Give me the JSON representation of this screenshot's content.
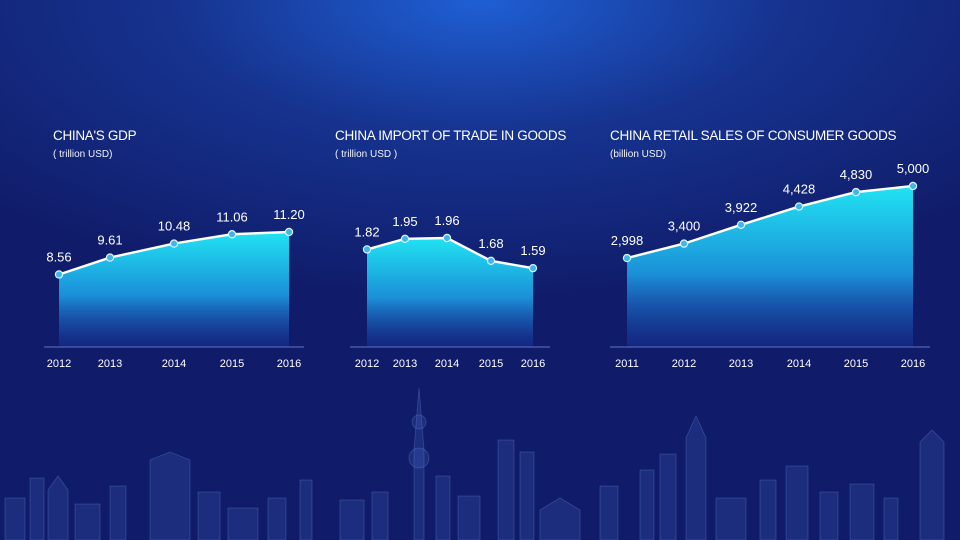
{
  "chart_data": [
    {
      "type": "area",
      "title": "CHINA'S GDP",
      "unit": "( trillion USD)",
      "categories": [
        "2012",
        "2013",
        "2014",
        "2015",
        "2016"
      ],
      "values": [
        8.56,
        9.61,
        10.48,
        11.06,
        11.2
      ],
      "value_labels": [
        "8.56",
        "9.61",
        "10.48",
        "11.06",
        "11.20"
      ],
      "ylim": [
        0,
        11.2
      ],
      "grid": false
    },
    {
      "type": "area",
      "title": "CHINA IMPORT OF TRADE IN GOODS",
      "unit": "( trillion USD )",
      "categories": [
        "2012",
        "2013",
        "2014",
        "2015",
        "2016"
      ],
      "values": [
        1.82,
        1.95,
        1.96,
        1.68,
        1.59
      ],
      "value_labels": [
        "1.82",
        "1.95",
        "1.96",
        "1.68",
        "1.59"
      ],
      "grid": false
    },
    {
      "type": "area",
      "title": "CHINA RETAIL SALES OF CONSUMER GOODS",
      "unit": "(billion USD)",
      "categories": [
        "2011",
        "2012",
        "2013",
        "2014",
        "2015",
        "2016"
      ],
      "values": [
        2998,
        3400,
        3922,
        4428,
        4830,
        5000
      ],
      "value_labels": [
        "2,998",
        "3,400",
        "3,922",
        "4,428",
        "4,830",
        "5,000"
      ],
      "ylim": [
        0,
        5000
      ],
      "grid": false
    }
  ],
  "colors": {
    "area_top": "#21e3f2",
    "area_bottom": "#1a3aa6",
    "line": "#ffffff",
    "marker": "#3fb6ef"
  }
}
